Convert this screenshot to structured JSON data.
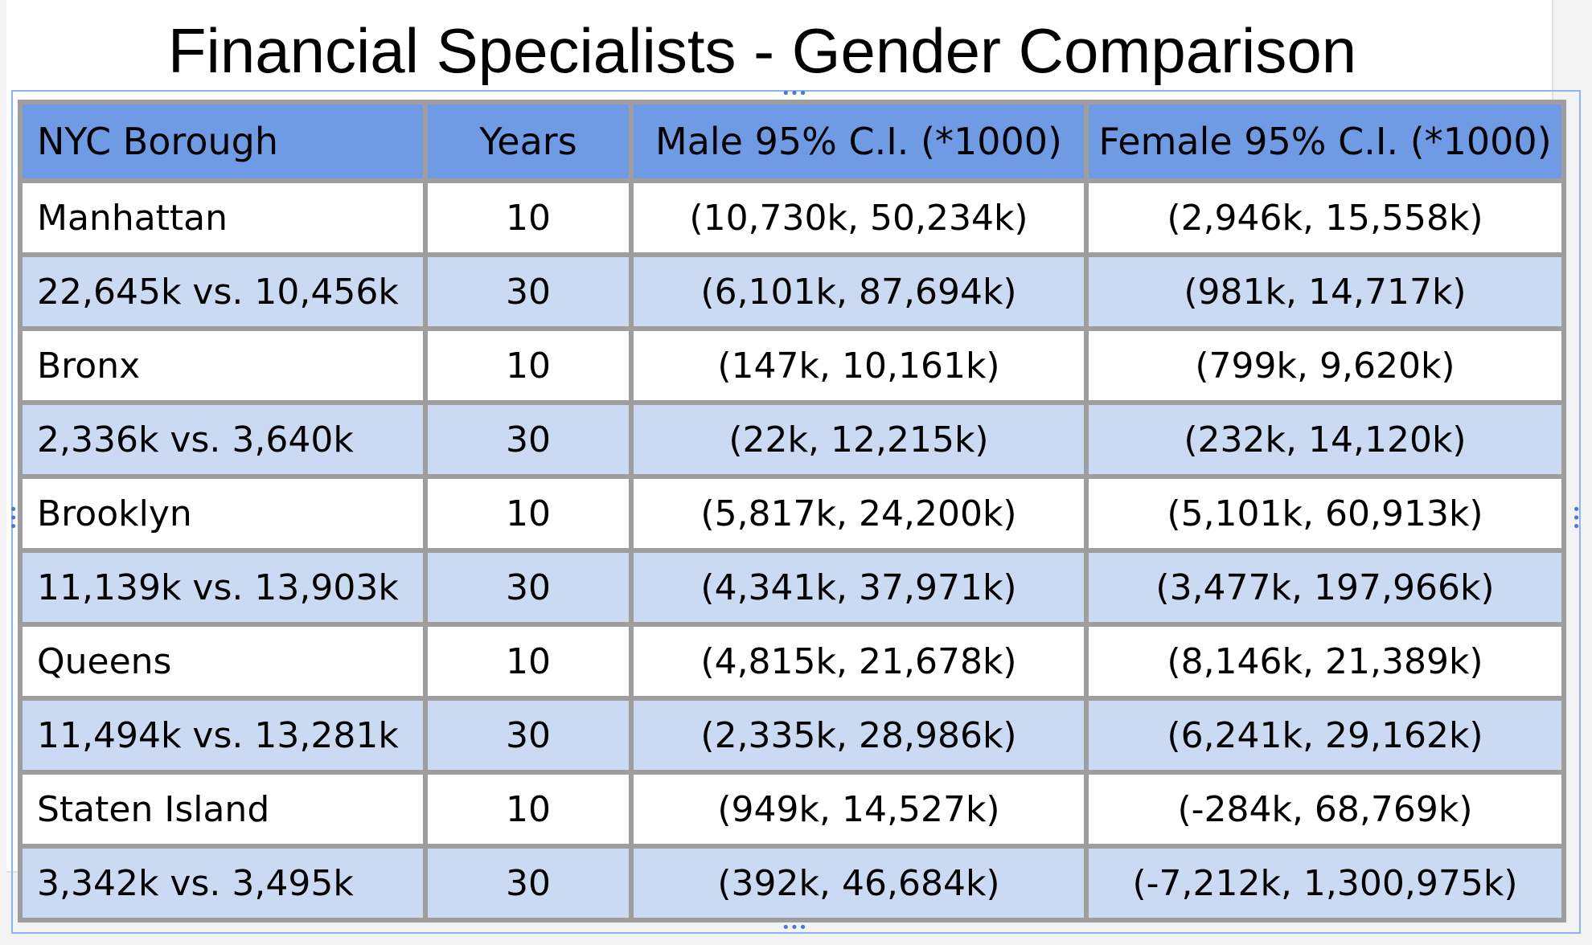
{
  "title": "Financial Specialists - Gender Comparison",
  "table": {
    "headers": [
      "NYC Borough",
      "Years",
      "Male 95% C.I. (*1000)",
      "Female 95% C.I. (*1000)"
    ],
    "rows": [
      [
        "Manhattan",
        "10",
        "(10,730k, 50,234k)",
        "(2,946k, 15,558k)"
      ],
      [
        "22,645k vs. 10,456k",
        "30",
        "(6,101k, 87,694k)",
        "(981k, 14,717k)"
      ],
      [
        "Bronx",
        "10",
        "(147k, 10,161k)",
        "(799k, 9,620k)"
      ],
      [
        "2,336k vs. 3,640k",
        "30",
        "(22k, 12,215k)",
        "(232k, 14,120k)"
      ],
      [
        "Brooklyn",
        "10",
        "(5,817k, 24,200k)",
        "(5,101k, 60,913k)"
      ],
      [
        "11,139k vs. 13,903k",
        "30",
        "(4,341k, 37,971k)",
        "(3,477k, 197,966k)"
      ],
      [
        "Queens",
        "10",
        "(4,815k, 21,678k)",
        "(8,146k, 21,389k)"
      ],
      [
        "11,494k vs. 13,281k",
        "30",
        "(2,335k, 28,986k)",
        "(6,241k, 29,162k)"
      ],
      [
        "Staten Island",
        "10",
        "(949k, 14,527k)",
        "(-284k, 68,769k)"
      ],
      [
        "3,342k vs. 3,495k",
        "30",
        "(392k, 46,684k)",
        "(-7,212k, 1,300,975k)"
      ]
    ]
  },
  "colors": {
    "header_bg": "#6e9be4",
    "alt_row_bg": "#cbdaf3",
    "border": "#9e9e9e",
    "selection": "#8ab4f8"
  }
}
